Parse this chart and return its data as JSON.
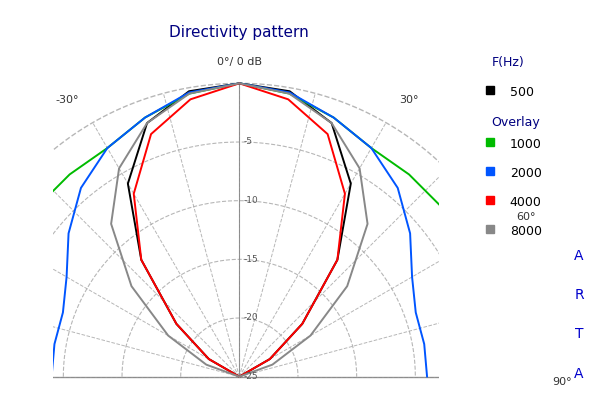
{
  "title": "Directivity pattern",
  "center_label": "0°/ 0 dB",
  "background_color": "#ffffff",
  "grid_color": "#aaaaaa",
  "r_min": -25,
  "r_max": 0,
  "r_ticks": [
    -5,
    -10,
    -15,
    -20,
    -25
  ],
  "legend_title1": "F(Hz)",
  "legend_title2": "Overlay",
  "legend_items": [
    {
      "label": "500",
      "color": "#000000"
    },
    {
      "label": "1000",
      "color": "#00bb00"
    },
    {
      "label": "2000",
      "color": "#0055ff"
    },
    {
      "label": "4000",
      "color": "#ff0000"
    },
    {
      "label": "8000",
      "color": "#888888"
    }
  ],
  "watermark": "ARTA",
  "series": [
    {
      "label": "500",
      "color": "#000000",
      "angles": [
        -90,
        -80,
        -70,
        -60,
        -50,
        -40,
        -30,
        -20,
        -10,
        0,
        10,
        20,
        30,
        40,
        50,
        60,
        70,
        80,
        90
      ],
      "dB": [
        -25.5,
        -25.5,
        -25,
        -22,
        -18,
        -12,
        -6,
        -2,
        -0.3,
        0,
        -0.3,
        -2,
        -6,
        -12,
        -18,
        -22,
        -25,
        -25.5,
        -25.5
      ]
    },
    {
      "label": "1000",
      "color": "#00bb00",
      "angles": [
        -90,
        -80,
        -70,
        -60,
        -50,
        -40,
        -30,
        -20,
        -10,
        0,
        10,
        20,
        30,
        40,
        50,
        60,
        70,
        80,
        90
      ],
      "dB": [
        -2.5,
        -2.5,
        -2.5,
        -2.5,
        -2.5,
        -2.5,
        -2.5,
        -1.5,
        -0.5,
        0,
        -0.5,
        -1.5,
        -2.5,
        -2.5,
        -2.5,
        -2.5,
        -2.5,
        -2.5,
        -2.5
      ]
    },
    {
      "label": "2000",
      "color": "#0055ff",
      "angles": [
        -90,
        -80,
        -70,
        -60,
        -50,
        -40,
        -30,
        -20,
        -10,
        0,
        10,
        20,
        30,
        40,
        50,
        60,
        70,
        80,
        90
      ],
      "dB": [
        -9,
        -9,
        -9,
        -8,
        -6,
        -4,
        -2.5,
        -1.5,
        -0.4,
        0,
        -0.4,
        -1.5,
        -2.5,
        -4,
        -6,
        -8,
        -9,
        -9,
        -9
      ]
    },
    {
      "label": "4000",
      "color": "#ff0000",
      "angles": [
        -90,
        -80,
        -70,
        -60,
        -50,
        -40,
        -30,
        -20,
        -10,
        0,
        10,
        20,
        30,
        40,
        50,
        60,
        70,
        80,
        90
      ],
      "dB": [
        -25.5,
        -25.5,
        -25,
        -22,
        -18,
        -12,
        -7,
        -3,
        -1,
        0,
        -1,
        -3,
        -7,
        -12,
        -18,
        -22,
        -25,
        -25.5,
        -25.5
      ]
    },
    {
      "label": "8000",
      "color": "#888888",
      "angles": [
        -90,
        -80,
        -70,
        -60,
        -50,
        -40,
        -30,
        -20,
        -10,
        0,
        10,
        20,
        30,
        40,
        50,
        60,
        70,
        80,
        90
      ],
      "dB": [
        -25.5,
        -25,
        -22,
        -18,
        -13,
        -8,
        -4.5,
        -2,
        -0.5,
        0,
        -0.5,
        -2,
        -4.5,
        -8,
        -13,
        -18,
        -22,
        -25,
        -25.5
      ]
    }
  ]
}
